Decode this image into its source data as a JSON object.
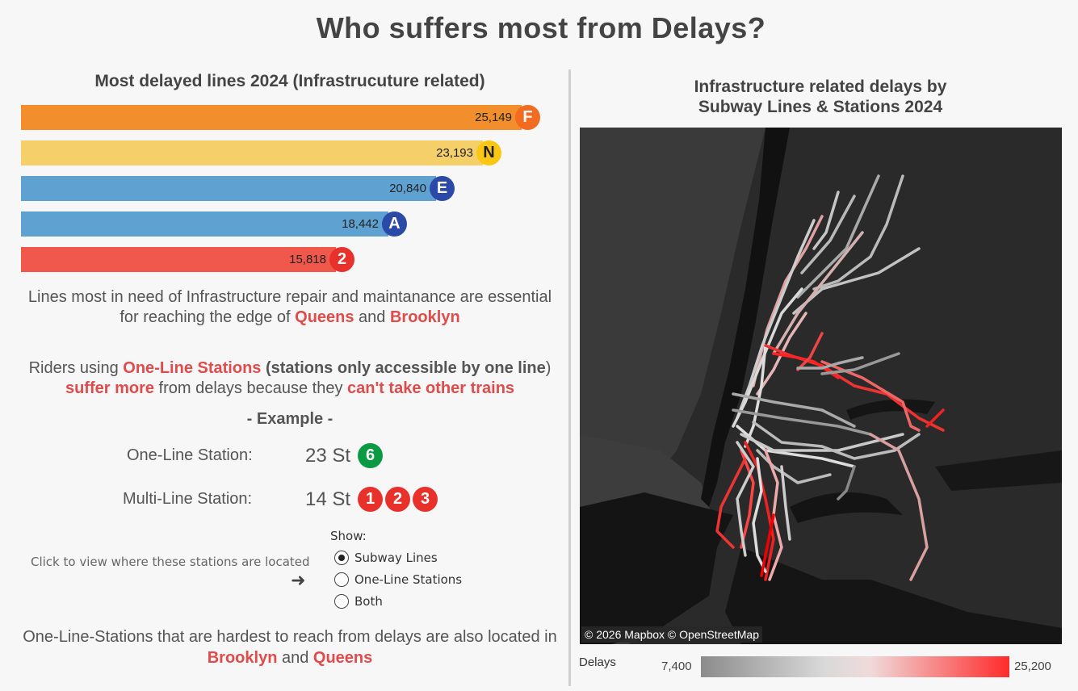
{
  "title": "Who suffers most from Delays?",
  "bar_chart": {
    "title": "Most delayed lines 2024 (Infrastrucuture related)",
    "items": [
      {
        "line": "F",
        "value": 25149,
        "label": "25,149",
        "color": "#f28e2b",
        "bullet_color": "#f26b21"
      },
      {
        "line": "N",
        "value": 23193,
        "label": "23,193",
        "color": "#f5d06a",
        "bullet_color": "#fcc612"
      },
      {
        "line": "E",
        "value": 20840,
        "label": "20,840",
        "color": "#5fa2d1",
        "bullet_color": "#2b4aa8"
      },
      {
        "line": "A",
        "value": 18442,
        "label": "18,442",
        "color": "#5fa2d1",
        "bullet_color": "#2b4aa8"
      },
      {
        "line": "2",
        "value": 15818,
        "label": "15,818",
        "color": "#f0584c",
        "bullet_color": "#e8312a"
      }
    ]
  },
  "text1": {
    "a": "Lines most in need of Infrastructure repair and maintanance are essential for reaching the edge of ",
    "queens": "Queens",
    "and": " and ",
    "brooklyn": "Brooklyn"
  },
  "text2": {
    "a": "Riders using ",
    "one_line": "One-Line Stations",
    "b": " (stations only accessible by one line",
    "c": ") ",
    "suffer": "suffer more",
    "d": " from delays because they ",
    "cant": "can't take other trains"
  },
  "example_heading": "- Example -",
  "one_line_station": {
    "label": "One-Line Station:",
    "name": "23 St",
    "lines": [
      "6"
    ],
    "color": "#0a9a44"
  },
  "multi_line_station": {
    "label": "Multi-Line Station:",
    "name": "14 St",
    "lines": [
      "1",
      "2",
      "3"
    ],
    "color": "#e8312a"
  },
  "click_note": "Click to view where these stations are located",
  "arrow": "➜",
  "show": {
    "label": "Show:",
    "options": [
      "Subway Lines",
      "One-Line Stations",
      "Both"
    ],
    "selected": "Subway Lines"
  },
  "text3": {
    "a": "One-Line-Stations that are hardest to reach from delays are also located in ",
    "brooklyn": "Brooklyn",
    "and": " and ",
    "queens": "Queens"
  },
  "map": {
    "title_line1": "Infrastructure related delays by",
    "title_line2": "Subway Lines & Stations 2024",
    "attribution": "© 2026 Mapbox  © OpenStreetMap"
  },
  "legend": {
    "label": "Delays",
    "min": "7,400",
    "max": "25,200",
    "color_low": "#8c8c8c",
    "color_high": "#ff2b2b"
  }
}
